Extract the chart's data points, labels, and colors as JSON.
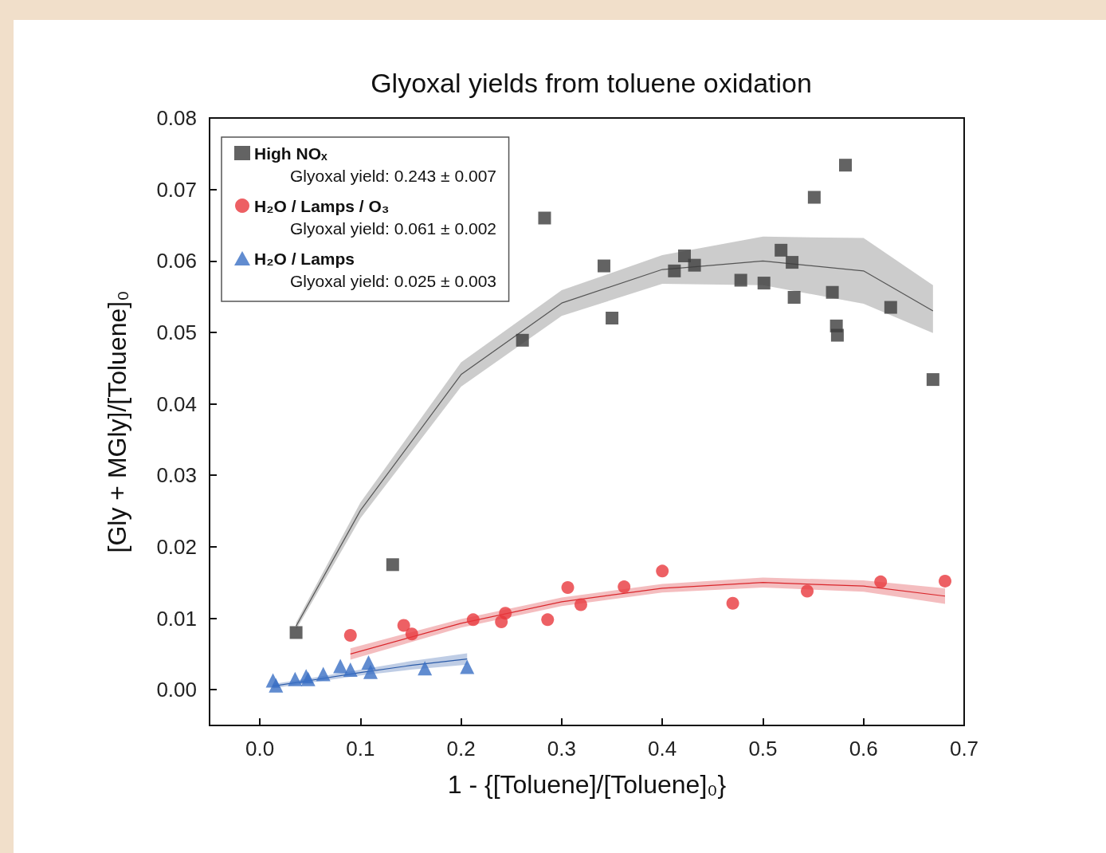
{
  "chart_data": {
    "type": "scatter",
    "title": "Glyoxal yields from toluene oxidation",
    "xlabel": "1 - {[Toluene]/[Toluene]₀}",
    "ylabel": "[Gly + MGly]/[Toluene]₀",
    "xlim": [
      -0.05,
      0.7
    ],
    "ylim": [
      -0.005,
      0.08
    ],
    "xticks": [
      {
        "value": 0,
        "label": "0.0"
      },
      0.1,
      0.2,
      0.3,
      0.4,
      0.5,
      0.6,
      0.7
    ],
    "yticks": [
      {
        "value": 0,
        "label": "0.00"
      },
      0.01,
      0.02,
      0.03,
      0.04,
      0.05,
      0.06,
      0.07,
      0.08
    ],
    "legend": "top left",
    "annotations": [
      "Glyoxal yield: 0.243 ± 0.007",
      "Glyoxal yield: 0.061 ± 0.002",
      "Glyoxal yield: 0.025 ± 0.003"
    ],
    "series": [
      {
        "type": "line",
        "color": "#555555",
        "marker": "none",
        "x": [
          0.036,
          0.1,
          0.2,
          0.3,
          0.4,
          0.5,
          0.6,
          0.669
        ],
        "values": [
          0.0089,
          0.0251,
          0.0441,
          0.0541,
          0.0588,
          0.06,
          0.0586,
          0.053
        ],
        "lower": [
          0.0084,
          0.024,
          0.0424,
          0.0523,
          0.0568,
          0.0566,
          0.054,
          0.0499
        ],
        "upper": [
          0.0094,
          0.0262,
          0.0458,
          0.0559,
          0.0608,
          0.0634,
          0.0632,
          0.0566
        ]
      },
      {
        "type": "line",
        "color": "#d9262b",
        "marker": "none",
        "x": [
          0.09,
          0.2,
          0.3,
          0.4,
          0.5,
          0.6,
          0.681
        ],
        "values": [
          0.005,
          0.0093,
          0.0123,
          0.0142,
          0.015,
          0.0145,
          0.0131
        ],
        "lower": [
          0.0042,
          0.0087,
          0.0117,
          0.0136,
          0.0143,
          0.0137,
          0.012
        ],
        "upper": [
          0.0058,
          0.0099,
          0.0129,
          0.0148,
          0.0157,
          0.0153,
          0.0142
        ]
      },
      {
        "type": "line",
        "color": "#2a5aa8",
        "marker": "none",
        "x": [
          0.013,
          0.05,
          0.1,
          0.15,
          0.206
        ],
        "values": [
          0.0005,
          0.0013,
          0.0024,
          0.0034,
          0.0043
        ],
        "lower": [
          0.0002,
          0.001,
          0.002,
          0.0028,
          0.0035
        ],
        "upper": [
          0.0008,
          0.0016,
          0.0028,
          0.004,
          0.0051
        ]
      },
      {
        "name": "High NOₓ",
        "color": "#3c3c3c",
        "marker": "square",
        "x": [
          0.036,
          0.132,
          0.261,
          0.283,
          0.342,
          0.35,
          0.412,
          0.422,
          0.432,
          0.478,
          0.501,
          0.518,
          0.529,
          0.531,
          0.551,
          0.569,
          0.573,
          0.574,
          0.582,
          0.627,
          0.669
        ],
        "values": [
          0.008,
          0.0175,
          0.0489,
          0.066,
          0.0593,
          0.052,
          0.0586,
          0.0607,
          0.0594,
          0.0573,
          0.0569,
          0.0615,
          0.0598,
          0.0549,
          0.0689,
          0.0556,
          0.0509,
          0.0496,
          0.0734,
          0.0535,
          0.0434
        ]
      },
      {
        "name": "H₂O / Lamps / O₃",
        "color": "#e8383d",
        "marker": "circle",
        "x": [
          0.09,
          0.143,
          0.151,
          0.212,
          0.24,
          0.244,
          0.286,
          0.306,
          0.319,
          0.362,
          0.4,
          0.47,
          0.544,
          0.617,
          0.681
        ],
        "values": [
          0.0076,
          0.009,
          0.0078,
          0.0098,
          0.0095,
          0.0107,
          0.0098,
          0.0143,
          0.0119,
          0.0144,
          0.0166,
          0.0121,
          0.0138,
          0.0151,
          0.0152
        ]
      },
      {
        "name": "H₂O / Lamps",
        "color": "#3a6fc4",
        "marker": "triangle",
        "x": [
          0.013,
          0.016,
          0.035,
          0.046,
          0.048,
          0.063,
          0.08,
          0.09,
          0.108,
          0.11,
          0.164,
          0.206
        ],
        "values": [
          0.0013,
          0.0006,
          0.0015,
          0.0019,
          0.0015,
          0.0022,
          0.0033,
          0.0028,
          0.0038,
          0.0025,
          0.003,
          0.0032
        ]
      }
    ]
  }
}
